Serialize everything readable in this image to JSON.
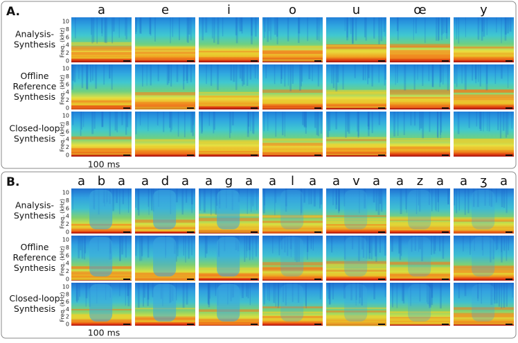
{
  "panels": [
    {
      "label": "A.",
      "columns": [
        [
          "a"
        ],
        [
          "e"
        ],
        [
          "i"
        ],
        [
          "o"
        ],
        [
          "u"
        ],
        [
          "œ"
        ],
        [
          "y"
        ]
      ],
      "rows": [
        [
          "Analysis-",
          "Synthesis"
        ],
        [
          "Offline",
          "Reference",
          "Synthesis"
        ],
        [
          "Closed-loop",
          "Synthesis"
        ]
      ],
      "axis_label": "Freq. (kHz)",
      "yticks": [
        0,
        2,
        4,
        6,
        8,
        10
      ],
      "scale_bar": "100 ms"
    },
    {
      "label": "B.",
      "columns": [
        [
          "a",
          "b",
          "a"
        ],
        [
          "a",
          "d",
          "a"
        ],
        [
          "a",
          "g",
          "a"
        ],
        [
          "a",
          "l",
          "a"
        ],
        [
          "a",
          "v",
          "a"
        ],
        [
          "a",
          "z",
          "a"
        ],
        [
          "a",
          "ʒ",
          "a"
        ]
      ],
      "rows": [
        [
          "Analysis-",
          "Synthesis"
        ],
        [
          "Offline",
          "Reference",
          "Synthesis"
        ],
        [
          "Closed-loop",
          "Synthesis"
        ]
      ],
      "axis_label": "Freq. (kHz)",
      "yticks": [
        0,
        2,
        4,
        6,
        8,
        10
      ],
      "scale_bar": "100 ms"
    }
  ]
}
